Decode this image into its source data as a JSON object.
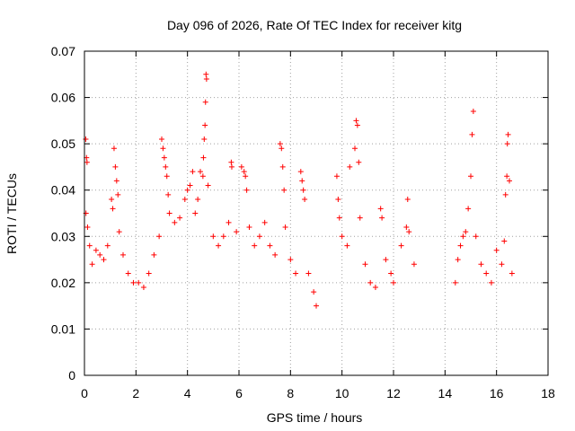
{
  "chart_data": {
    "type": "scatter",
    "title": "Day 096 of 2026, Rate Of TEC Index for receiver kitg",
    "xlabel": "GPS time / hours",
    "ylabel": "ROTI / TECUs",
    "xlim": [
      0,
      18
    ],
    "ylim": [
      0,
      0.07
    ],
    "xticks": [
      0,
      2,
      4,
      6,
      8,
      10,
      12,
      14,
      16,
      18
    ],
    "xtick_labels": [
      "0",
      "2",
      "4",
      "6",
      "8",
      "10",
      "12",
      "14",
      "16",
      "18"
    ],
    "yticks": [
      0,
      0.01,
      0.02,
      0.03,
      0.04,
      0.05,
      0.06,
      0.07
    ],
    "ytick_labels": [
      "0",
      "0.01",
      "0.02",
      "0.03",
      "0.04",
      "0.05",
      "0.06",
      "0.07"
    ],
    "grid": true,
    "marker": "plus",
    "color": "#ff0000",
    "series": [
      {
        "name": "ROTI",
        "points": [
          [
            0.05,
            0.051
          ],
          [
            0.08,
            0.047
          ],
          [
            0.1,
            0.046
          ],
          [
            0.06,
            0.035
          ],
          [
            0.12,
            0.032
          ],
          [
            0.2,
            0.028
          ],
          [
            0.3,
            0.024
          ],
          [
            0.45,
            0.027
          ],
          [
            0.6,
            0.026
          ],
          [
            0.75,
            0.025
          ],
          [
            0.9,
            0.028
          ],
          [
            1.05,
            0.038
          ],
          [
            1.1,
            0.036
          ],
          [
            1.15,
            0.049
          ],
          [
            1.2,
            0.045
          ],
          [
            1.25,
            0.042
          ],
          [
            1.3,
            0.039
          ],
          [
            1.35,
            0.031
          ],
          [
            1.5,
            0.026
          ],
          [
            1.7,
            0.022
          ],
          [
            1.9,
            0.02
          ],
          [
            2.1,
            0.02
          ],
          [
            2.3,
            0.019
          ],
          [
            2.5,
            0.022
          ],
          [
            2.7,
            0.026
          ],
          [
            2.9,
            0.03
          ],
          [
            3.0,
            0.051
          ],
          [
            3.05,
            0.049
          ],
          [
            3.1,
            0.047
          ],
          [
            3.15,
            0.045
          ],
          [
            3.2,
            0.043
          ],
          [
            3.25,
            0.039
          ],
          [
            3.3,
            0.035
          ],
          [
            3.5,
            0.033
          ],
          [
            3.7,
            0.034
          ],
          [
            3.9,
            0.038
          ],
          [
            4.0,
            0.04
          ],
          [
            4.1,
            0.041
          ],
          [
            4.2,
            0.044
          ],
          [
            4.3,
            0.035
          ],
          [
            4.4,
            0.038
          ],
          [
            4.5,
            0.044
          ],
          [
            4.6,
            0.043
          ],
          [
            4.62,
            0.047
          ],
          [
            4.65,
            0.051
          ],
          [
            4.68,
            0.054
          ],
          [
            4.7,
            0.059
          ],
          [
            4.72,
            0.065
          ],
          [
            4.74,
            0.064
          ],
          [
            4.8,
            0.041
          ],
          [
            5.0,
            0.03
          ],
          [
            5.2,
            0.028
          ],
          [
            5.4,
            0.03
          ],
          [
            5.6,
            0.033
          ],
          [
            5.7,
            0.046
          ],
          [
            5.72,
            0.045
          ],
          [
            5.9,
            0.031
          ],
          [
            6.1,
            0.045
          ],
          [
            6.2,
            0.044
          ],
          [
            6.25,
            0.043
          ],
          [
            6.3,
            0.04
          ],
          [
            6.4,
            0.032
          ],
          [
            6.6,
            0.028
          ],
          [
            6.8,
            0.03
          ],
          [
            7.0,
            0.033
          ],
          [
            7.2,
            0.028
          ],
          [
            7.4,
            0.026
          ],
          [
            7.6,
            0.05
          ],
          [
            7.65,
            0.049
          ],
          [
            7.7,
            0.045
          ],
          [
            7.75,
            0.04
          ],
          [
            7.8,
            0.032
          ],
          [
            8.0,
            0.025
          ],
          [
            8.2,
            0.022
          ],
          [
            8.4,
            0.044
          ],
          [
            8.45,
            0.042
          ],
          [
            8.5,
            0.04
          ],
          [
            8.55,
            0.038
          ],
          [
            8.7,
            0.022
          ],
          [
            8.9,
            0.018
          ],
          [
            9.0,
            0.015
          ],
          [
            9.8,
            0.043
          ],
          [
            9.85,
            0.038
          ],
          [
            9.9,
            0.034
          ],
          [
            10.0,
            0.03
          ],
          [
            10.2,
            0.028
          ],
          [
            10.3,
            0.045
          ],
          [
            10.5,
            0.049
          ],
          [
            10.55,
            0.055
          ],
          [
            10.6,
            0.054
          ],
          [
            10.65,
            0.046
          ],
          [
            10.7,
            0.034
          ],
          [
            10.9,
            0.024
          ],
          [
            11.1,
            0.02
          ],
          [
            11.3,
            0.019
          ],
          [
            11.5,
            0.036
          ],
          [
            11.55,
            0.034
          ],
          [
            11.7,
            0.025
          ],
          [
            11.9,
            0.022
          ],
          [
            12.0,
            0.02
          ],
          [
            12.3,
            0.028
          ],
          [
            12.5,
            0.032
          ],
          [
            12.55,
            0.038
          ],
          [
            12.6,
            0.031
          ],
          [
            12.8,
            0.024
          ],
          [
            14.4,
            0.02
          ],
          [
            14.5,
            0.025
          ],
          [
            14.6,
            0.028
          ],
          [
            14.7,
            0.03
          ],
          [
            14.8,
            0.031
          ],
          [
            14.9,
            0.036
          ],
          [
            15.0,
            0.043
          ],
          [
            15.05,
            0.052
          ],
          [
            15.1,
            0.057
          ],
          [
            15.2,
            0.03
          ],
          [
            15.4,
            0.024
          ],
          [
            15.6,
            0.022
          ],
          [
            15.8,
            0.02
          ],
          [
            16.0,
            0.027
          ],
          [
            16.2,
            0.024
          ],
          [
            16.3,
            0.029
          ],
          [
            16.35,
            0.039
          ],
          [
            16.4,
            0.043
          ],
          [
            16.42,
            0.05
          ],
          [
            16.45,
            0.052
          ],
          [
            16.5,
            0.042
          ],
          [
            16.6,
            0.022
          ]
        ]
      }
    ]
  }
}
